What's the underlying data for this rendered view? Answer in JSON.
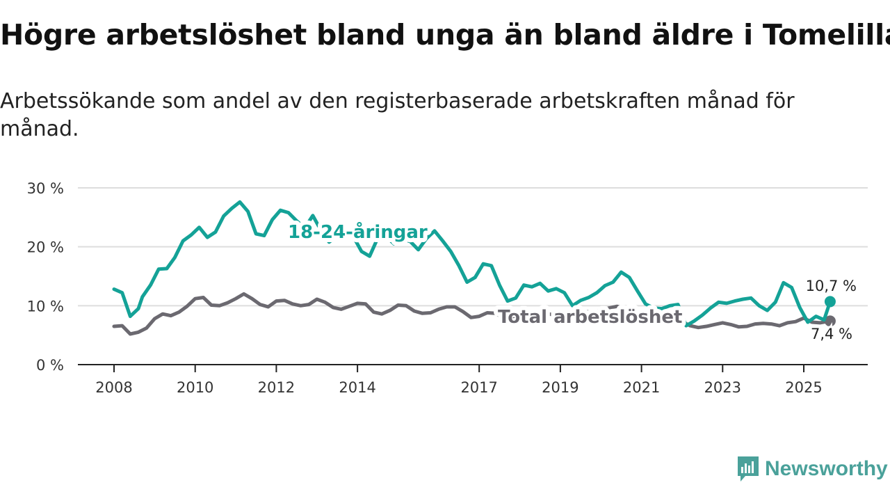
{
  "title": "Högre arbetslöshet bland unga än bland äldre i Tomelilla",
  "subtitle": "Arbetssökande som andel av den registerbaserade arbetskraften månad för månad.",
  "brand": {
    "name": "Newsworthy",
    "icon": "newsworthy-logo-icon",
    "color": "#4aa19a"
  },
  "chart_data": {
    "type": "line",
    "title": "Högre arbetslöshet bland unga än bland äldre i Tomelilla",
    "xlabel": "",
    "ylabel": "",
    "ylim": [
      0,
      30
    ],
    "xlim": [
      2008,
      2026.6
    ],
    "grid": true,
    "y_ticks": [
      0,
      10,
      20,
      30
    ],
    "y_tick_labels": [
      "0 %",
      "10 %",
      "20 %",
      "30 %"
    ],
    "x_ticks": [
      2008,
      2010,
      2012,
      2014,
      2017,
      2019,
      2021,
      2023,
      2025
    ],
    "x_tick_labels": [
      "2008",
      "2010",
      "2012",
      "2014",
      "2017",
      "2019",
      "2021",
      "2023",
      "2025"
    ],
    "series": [
      {
        "name": "18-24-åringar",
        "label": "18-24-åringar",
        "color": "#14a297",
        "end_label": "10,7 %",
        "x": [
          2008.0,
          2008.2,
          2008.4,
          2008.6,
          2008.7,
          2008.9,
          2009.1,
          2009.3,
          2009.5,
          2009.7,
          2009.9,
          2010.1,
          2010.3,
          2010.5,
          2010.7,
          2010.9,
          2011.1,
          2011.3,
          2011.5,
          2011.7,
          2011.9,
          2012.1,
          2012.3,
          2012.5,
          2012.7,
          2012.9,
          2013.1,
          2013.3,
          2013.5,
          2013.7,
          2013.9,
          2014.1,
          2014.3,
          2014.5,
          2014.7,
          2014.9,
          2015.1,
          2015.3,
          2015.5,
          2015.7,
          2015.9,
          2016.1,
          2016.3,
          2016.5,
          2016.7,
          2016.9,
          2017.1,
          2017.3,
          2017.5,
          2017.7,
          2017.9,
          2018.1,
          2018.3,
          2018.5,
          2018.7,
          2018.9,
          2019.1,
          2019.3,
          2019.5,
          2019.7,
          2019.9,
          2020.1,
          2020.3,
          2020.5,
          2020.7,
          2020.9,
          2021.1,
          2021.3,
          2021.5,
          2021.7,
          2021.9,
          2022.1,
          2022.3,
          2022.5,
          2022.7,
          2022.9,
          2023.1,
          2023.3,
          2023.5,
          2023.7,
          2023.9,
          2024.1,
          2024.3,
          2024.5,
          2024.7,
          2024.9,
          2025.1,
          2025.3,
          2025.5,
          2025.65
        ],
        "values": [
          12.8,
          12.2,
          8.2,
          9.5,
          11.5,
          13.5,
          16.2,
          16.3,
          18.2,
          21.0,
          22.0,
          23.3,
          21.6,
          22.5,
          25.2,
          26.5,
          27.6,
          26.0,
          22.2,
          21.9,
          24.6,
          26.2,
          25.8,
          24.4,
          23.2,
          25.3,
          22.8,
          20.8,
          21.8,
          22.8,
          21.7,
          19.2,
          18.4,
          21.5,
          21.8,
          20.5,
          21.3,
          20.9,
          19.5,
          21.4,
          22.7,
          21.0,
          19.2,
          16.8,
          14.0,
          14.8,
          17.1,
          16.8,
          13.5,
          10.8,
          11.3,
          13.5,
          13.2,
          13.8,
          12.5,
          12.9,
          12.2,
          10.0,
          10.9,
          11.4,
          12.2,
          13.4,
          14.0,
          15.7,
          14.8,
          12.5,
          10.3,
          9.6,
          9.5,
          10.0,
          10.2,
          6.6,
          7.4,
          8.4,
          9.6,
          10.6,
          10.4,
          10.8,
          11.1,
          11.3,
          10.0,
          9.2,
          10.6,
          13.9,
          13.1,
          9.7,
          7.2,
          8.2,
          7.6,
          10.7
        ]
      },
      {
        "name": "Total arbetslöshet",
        "label": "Total arbetslöshet",
        "color": "#6b6970",
        "end_label": "7,4 %",
        "x": [
          2008.0,
          2008.2,
          2008.4,
          2008.6,
          2008.8,
          2009.0,
          2009.2,
          2009.4,
          2009.6,
          2009.8,
          2010.0,
          2010.2,
          2010.4,
          2010.6,
          2010.8,
          2011.0,
          2011.2,
          2011.4,
          2011.6,
          2011.8,
          2012.0,
          2012.2,
          2012.4,
          2012.6,
          2012.8,
          2013.0,
          2013.2,
          2013.4,
          2013.6,
          2013.8,
          2014.0,
          2014.2,
          2014.4,
          2014.6,
          2014.8,
          2015.0,
          2015.2,
          2015.4,
          2015.6,
          2015.8,
          2016.0,
          2016.2,
          2016.4,
          2016.6,
          2016.8,
          2017.0,
          2017.2,
          2017.4,
          2017.6,
          2017.8,
          2018.0,
          2018.2,
          2018.4,
          2018.6,
          2018.8,
          2019.0,
          2019.2,
          2019.4,
          2019.6,
          2019.8,
          2020.0,
          2020.2,
          2020.4,
          2020.6,
          2020.8,
          2021.0,
          2021.2,
          2021.4,
          2021.6,
          2021.8,
          2022.0,
          2022.2,
          2022.4,
          2022.6,
          2022.8,
          2023.0,
          2023.2,
          2023.4,
          2023.6,
          2023.8,
          2024.0,
          2024.2,
          2024.4,
          2024.6,
          2024.8,
          2025.0,
          2025.2,
          2025.4,
          2025.65
        ],
        "values": [
          6.5,
          6.6,
          5.2,
          5.5,
          6.2,
          7.8,
          8.6,
          8.3,
          8.9,
          9.9,
          11.2,
          11.4,
          10.1,
          10.0,
          10.5,
          11.2,
          12.0,
          11.2,
          10.2,
          9.8,
          10.8,
          10.9,
          10.3,
          10.0,
          10.2,
          11.1,
          10.6,
          9.7,
          9.4,
          9.9,
          10.4,
          10.3,
          8.9,
          8.6,
          9.2,
          10.1,
          10.0,
          9.1,
          8.7,
          8.8,
          9.4,
          9.8,
          9.8,
          9.0,
          8.0,
          8.2,
          8.8,
          8.7,
          7.9,
          8.1,
          8.6,
          8.8,
          8.9,
          8.7,
          8.5,
          8.4,
          8.6,
          8.8,
          9.0,
          8.9,
          9.2,
          9.6,
          9.9,
          9.4,
          9.0,
          8.6,
          8.5,
          8.1,
          7.8,
          7.6,
          7.3,
          6.6,
          6.3,
          6.5,
          6.8,
          7.1,
          6.8,
          6.4,
          6.5,
          6.9,
          7.0,
          6.9,
          6.6,
          7.1,
          7.3,
          7.9,
          7.2,
          7.1,
          7.4
        ]
      }
    ]
  }
}
